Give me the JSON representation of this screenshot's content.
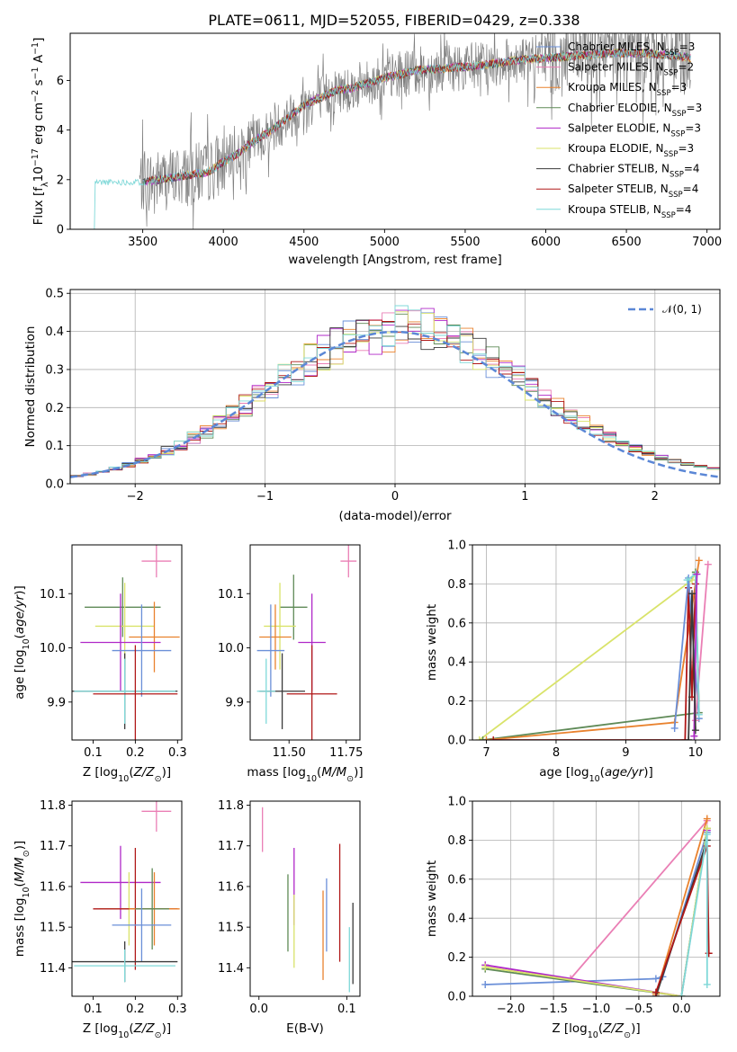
{
  "title": "PLATE=0611, MJD=52055, FIBERID=0429, z=0.338",
  "colors": {
    "Chabrier MILES": "#6a8fd8",
    "Salpeter MILES": "#ea7fb5",
    "Kroupa MILES": "#e9822e",
    "Chabrier ELODIE": "#5f8a57",
    "Salpeter ELODIE": "#b028c8",
    "Kroupa ELODIE": "#d9e36a",
    "Chabrier STELIB": "#3a3a3a",
    "Salpeter STELIB": "#b01818",
    "Kroupa STELIB": "#7fd8d8",
    "data": "#808080",
    "gaussian": "#5b87d6"
  },
  "chart_data": [
    {
      "type": "line",
      "title": "PLATE=0611, MJD=52055, FIBERID=0429, z=0.338",
      "xlabel": "wavelength [Angstrom, rest frame]",
      "ylabel": "Flux [f_λ 10^-17 erg cm^-2 s^-1 A^-1]",
      "xlim": [
        3050,
        7080
      ],
      "ylim": [
        0,
        7.9
      ],
      "xticks": [
        3500,
        4000,
        4500,
        5000,
        5500,
        6000,
        6500,
        7000
      ],
      "yticks": [
        0,
        2,
        4,
        6
      ],
      "legend_position": "right",
      "series": [
        {
          "name": "Chabrier MILES, N_SSP=3"
        },
        {
          "name": "Salpeter MILES, N_SSP=2"
        },
        {
          "name": "Kroupa MILES, N_SSP=3"
        },
        {
          "name": "Chabrier ELODIE, N_SSP=3"
        },
        {
          "name": "Salpeter ELODIE, N_SSP=3"
        },
        {
          "name": "Kroupa ELODIE, N_SSP=3"
        },
        {
          "name": "Chabrier STELIB, N_SSP=4"
        },
        {
          "name": "Salpeter STELIB, N_SSP=4"
        },
        {
          "name": "Kroupa STELIB, N_SSP=4"
        }
      ],
      "continuum": {
        "x": [
          3200,
          3300,
          3400,
          3500,
          3600,
          3700,
          3800,
          3900,
          4000,
          4100,
          4200,
          4300,
          4400,
          4500,
          4600,
          4700,
          4800,
          4900,
          5000,
          5200,
          5400,
          5600,
          5800,
          6000,
          6200,
          6400,
          6600,
          6800,
          6900
        ],
        "y": [
          1.9,
          2.0,
          2.0,
          1.9,
          2.0,
          2.1,
          2.2,
          2.3,
          2.7,
          3.1,
          3.6,
          4.0,
          4.5,
          5.0,
          5.3,
          5.6,
          5.7,
          5.9,
          6.1,
          6.4,
          6.5,
          6.6,
          6.8,
          6.9,
          7.0,
          7.1,
          7.1,
          7.0,
          6.9
        ]
      }
    },
    {
      "type": "line",
      "xlabel": "(data-model)/error",
      "ylabel": "Normed distribution",
      "xlim": [
        -2.5,
        2.5
      ],
      "ylim": [
        0,
        0.51
      ],
      "xticks": [
        -2,
        -1,
        0,
        1,
        2
      ],
      "yticks": [
        0.0,
        0.1,
        0.2,
        0.3,
        0.4,
        0.5
      ],
      "grid": true,
      "legend_position": "top-right",
      "reference": {
        "name": "N(0, 1)",
        "mean": 0,
        "sigma": 1
      },
      "bin_width": 0.1
    },
    {
      "type": "scatter",
      "xlabel": "Z [log10(Z/Z_sun)]",
      "ylabel": "age [log10(age/yr)]",
      "xlim": [
        0.05,
        0.31
      ],
      "ylim": [
        9.83,
        10.19
      ],
      "xticks": [
        0.1,
        0.2,
        0.3
      ],
      "yticks": [
        9.9,
        10.0,
        10.1
      ],
      "errorbars": [
        {
          "series": "Salpeter MILES",
          "x": 0.25,
          "xerr": 0.035,
          "y": 10.16,
          "yerr": 0.03
        },
        {
          "series": "Chabrier ELODIE",
          "x": 0.17,
          "xerr": 0.09,
          "y": 10.075,
          "yerr": 0.055
        },
        {
          "series": "Kroupa ELODIE",
          "x": 0.175,
          "xerr": 0.07,
          "y": 10.04,
          "yerr": 0.08
        },
        {
          "series": "Kroupa MILES",
          "x": 0.245,
          "xerr": 0.06,
          "y": 10.02,
          "yerr": 0.065
        },
        {
          "series": "Salpeter ELODIE",
          "x": 0.165,
          "xerr": 0.095,
          "y": 10.01,
          "yerr": 0.09
        },
        {
          "series": "Chabrier MILES",
          "x": 0.215,
          "xerr": 0.07,
          "y": 9.995,
          "yerr": 0.085
        },
        {
          "series": "Chabrier STELIB",
          "x": 0.175,
          "xerr": 0.125,
          "y": 9.92,
          "yerr": 0.07
        },
        {
          "series": "Kroupa STELIB",
          "x": 0.175,
          "xerr": 0.12,
          "y": 9.92,
          "yerr": 0.06
        },
        {
          "series": "Salpeter STELIB",
          "x": 0.2,
          "xerr": 0.1,
          "y": 9.915,
          "yerr": 0.09
        }
      ]
    },
    {
      "type": "scatter",
      "xlabel": "mass [log10(M/M_sun)]",
      "xlim": [
        11.33,
        11.81
      ],
      "ylim": [
        9.83,
        10.19
      ],
      "xticks": [
        11.5,
        11.75
      ],
      "yticks": [
        9.9,
        10.0,
        10.1
      ],
      "errorbars": [
        {
          "series": "Salpeter MILES",
          "x": 11.76,
          "xerr": 0.035,
          "y": 10.16,
          "yerr": 0.03
        },
        {
          "series": "Chabrier ELODIE",
          "x": 11.52,
          "xerr": 0.06,
          "y": 10.075,
          "yerr": 0.06
        },
        {
          "series": "Kroupa ELODIE",
          "x": 11.46,
          "xerr": 0.07,
          "y": 10.04,
          "yerr": 0.08
        },
        {
          "series": "Kroupa MILES",
          "x": 11.44,
          "xerr": 0.07,
          "y": 10.02,
          "yerr": 0.06
        },
        {
          "series": "Salpeter ELODIE",
          "x": 11.6,
          "xerr": 0.06,
          "y": 10.01,
          "yerr": 0.09
        },
        {
          "series": "Chabrier MILES",
          "x": 11.42,
          "xerr": 0.06,
          "y": 9.995,
          "yerr": 0.085
        },
        {
          "series": "Chabrier STELIB",
          "x": 11.47,
          "xerr": 0.1,
          "y": 9.92,
          "yerr": 0.07
        },
        {
          "series": "Kroupa STELIB",
          "x": 11.4,
          "xerr": 0.04,
          "y": 9.92,
          "yerr": 0.06
        },
        {
          "series": "Salpeter STELIB",
          "x": 11.6,
          "xerr": 0.11,
          "y": 9.915,
          "yerr": 0.09
        }
      ]
    },
    {
      "type": "line",
      "xlabel": "age [log10(age/yr)]",
      "ylabel": "mass weight",
      "xlim": [
        6.8,
        10.35
      ],
      "ylim": [
        0,
        1.0
      ],
      "xticks": [
        7,
        8,
        9,
        10
      ],
      "yticks": [
        0.0,
        0.2,
        0.4,
        0.6,
        0.8,
        1.0
      ],
      "grid": true,
      "series": [
        {
          "color_of": "Kroupa ELODIE",
          "points": [
            [
              6.9,
              0.0
            ],
            [
              9.95,
              0.82
            ],
            [
              10.0,
              0.86
            ]
          ]
        },
        {
          "color_of": "Chabrier ELODIE",
          "points": [
            [
              6.95,
              0.0
            ],
            [
              10.05,
              0.14
            ],
            [
              10.0,
              0.86
            ]
          ]
        },
        {
          "color_of": "Kroupa MILES",
          "points": [
            [
              7.0,
              0.0
            ],
            [
              9.7,
              0.09
            ],
            [
              10.05,
              0.92
            ]
          ]
        },
        {
          "color_of": "Salpeter STELIB",
          "points": [
            [
              7.1,
              0.0
            ],
            [
              9.85,
              0.0
            ],
            [
              9.9,
              0.78
            ],
            [
              9.95,
              0.22
            ],
            [
              10.0,
              0.8
            ]
          ]
        },
        {
          "color_of": "Chabrier MILES",
          "points": [
            [
              9.7,
              0.06
            ],
            [
              9.9,
              0.83
            ],
            [
              10.05,
              0.11
            ]
          ]
        },
        {
          "color_of": "Salpeter MILES",
          "points": [
            [
              10.0,
              0.1
            ],
            [
              10.18,
              0.9
            ]
          ]
        },
        {
          "color_of": "Kroupa STELIB",
          "points": [
            [
              9.88,
              0.82
            ],
            [
              10.0,
              0.85
            ],
            [
              10.05,
              0.13
            ]
          ]
        },
        {
          "color_of": "Salpeter ELODIE",
          "points": [
            [
              9.98,
              0.02
            ],
            [
              10.02,
              0.85
            ]
          ]
        },
        {
          "color_of": "Chabrier STELIB",
          "points": [
            [
              9.9,
              0.0
            ],
            [
              9.95,
              0.75
            ],
            [
              10.0,
              0.05
            ]
          ]
        }
      ]
    },
    {
      "type": "scatter",
      "xlabel": "Z [log10(Z/Z_sun)]",
      "ylabel": "mass [log10(M/M_sun)]",
      "xlim": [
        0.05,
        0.31
      ],
      "ylim": [
        11.33,
        11.81
      ],
      "xticks": [
        0.1,
        0.2,
        0.3
      ],
      "yticks": [
        11.4,
        11.5,
        11.6,
        11.7,
        11.8
      ],
      "errorbars": [
        {
          "series": "Salpeter MILES",
          "x": 0.25,
          "xerr": 0.035,
          "y": 11.785,
          "yerr": 0.05
        },
        {
          "series": "Salpeter ELODIE",
          "x": 0.165,
          "xerr": 0.095,
          "y": 11.61,
          "yerr": 0.09
        },
        {
          "series": "Kroupa ELODIE",
          "x": 0.185,
          "xerr": 0.07,
          "y": 11.545,
          "yerr": 0.09
        },
        {
          "series": "Salpeter STELIB",
          "x": 0.2,
          "xerr": 0.1,
          "y": 11.545,
          "yerr": 0.15
        },
        {
          "series": "Kroupa MILES",
          "x": 0.245,
          "xerr": 0.06,
          "y": 11.545,
          "yerr": 0.09
        },
        {
          "series": "Chabrier ELODIE",
          "x": 0.24,
          "xerr": 0.04,
          "y": 11.545,
          "yerr": 0.1
        },
        {
          "series": "Chabrier MILES",
          "x": 0.215,
          "xerr": 0.07,
          "y": 11.505,
          "yerr": 0.09
        },
        {
          "series": "Chabrier STELIB",
          "x": 0.175,
          "xerr": 0.125,
          "y": 11.415,
          "yerr": 0.05
        },
        {
          "series": "Kroupa STELIB",
          "x": 0.175,
          "xerr": 0.12,
          "y": 11.405,
          "yerr": 0.04
        }
      ]
    },
    {
      "type": "scatter",
      "xlabel": "E(B-V)",
      "xlim": [
        -0.01,
        0.115
      ],
      "ylim": [
        11.33,
        11.81
      ],
      "xticks": [
        0.0,
        0.1
      ],
      "yticks": [
        11.4,
        11.5,
        11.6,
        11.7,
        11.8
      ],
      "errorbars": [
        {
          "series": "Salpeter MILES",
          "x": 0.004,
          "y": 11.74,
          "yerr": 0.055
        },
        {
          "series": "Chabrier ELODIE",
          "x": 0.033,
          "y": 11.535,
          "yerr": 0.095
        },
        {
          "series": "Salpeter ELODIE",
          "x": 0.04,
          "y": 11.6,
          "yerr": 0.095
        },
        {
          "series": "Kroupa ELODIE",
          "x": 0.04,
          "y": 11.49,
          "yerr": 0.09
        },
        {
          "series": "Kroupa MILES",
          "x": 0.073,
          "y": 11.48,
          "yerr": 0.11
        },
        {
          "series": "Chabrier MILES",
          "x": 0.077,
          "y": 11.53,
          "yerr": 0.09
        },
        {
          "series": "Salpeter STELIB",
          "x": 0.092,
          "y": 11.56,
          "yerr": 0.145
        },
        {
          "series": "Kroupa STELIB",
          "x": 0.103,
          "y": 11.42,
          "yerr": 0.08
        },
        {
          "series": "Chabrier STELIB",
          "x": 0.107,
          "y": 11.46,
          "yerr": 0.1
        }
      ]
    },
    {
      "type": "line",
      "xlabel": "Z [log10(Z/Z_sun)]",
      "ylabel": "mass weight",
      "xlim": [
        -2.45,
        0.45
      ],
      "ylim": [
        0,
        1.0
      ],
      "xticks": [
        -2.0,
        -1.5,
        -1.0,
        -0.5,
        0.0
      ],
      "yticks": [
        0.0,
        0.2,
        0.4,
        0.6,
        0.8,
        1.0
      ],
      "grid": true,
      "series": [
        {
          "color_of": "Chabrier MILES",
          "points": [
            [
              -2.3,
              0.06
            ],
            [
              -0.3,
              0.09
            ],
            [
              -0.22,
              0.1
            ],
            [
              0.3,
              0.84
            ]
          ]
        },
        {
          "color_of": "Salpeter MILES",
          "points": [
            [
              -1.3,
              0.09
            ],
            [
              0.3,
              0.9
            ]
          ]
        },
        {
          "color_of": "Kroupa MILES",
          "points": [
            [
              -0.3,
              0.01
            ],
            [
              0.3,
              0.91
            ]
          ]
        },
        {
          "color_of": "Chabrier ELODIE",
          "points": [
            [
              -2.3,
              0.14
            ],
            [
              0.0,
              0.0
            ],
            [
              0.3,
              0.86
            ]
          ]
        },
        {
          "color_of": "Salpeter ELODIE",
          "points": [
            [
              -2.3,
              0.16
            ],
            [
              0.0,
              0.0
            ],
            [
              0.3,
              0.85
            ]
          ]
        },
        {
          "color_of": "Kroupa ELODIE",
          "points": [
            [
              -2.3,
              0.15
            ],
            [
              0.0,
              0.0
            ],
            [
              0.3,
              0.86
            ]
          ]
        },
        {
          "color_of": "Chabrier STELIB",
          "points": [
            [
              -0.3,
              0.0
            ],
            [
              0.3,
              0.8
            ]
          ]
        },
        {
          "color_of": "Salpeter STELIB",
          "points": [
            [
              -0.3,
              0.02
            ],
            [
              0.3,
              0.77
            ],
            [
              0.32,
              0.22
            ]
          ]
        },
        {
          "color_of": "Kroupa STELIB",
          "points": [
            [
              0.0,
              0.0
            ],
            [
              0.3,
              0.83
            ],
            [
              0.3,
              0.06
            ]
          ]
        }
      ]
    }
  ]
}
